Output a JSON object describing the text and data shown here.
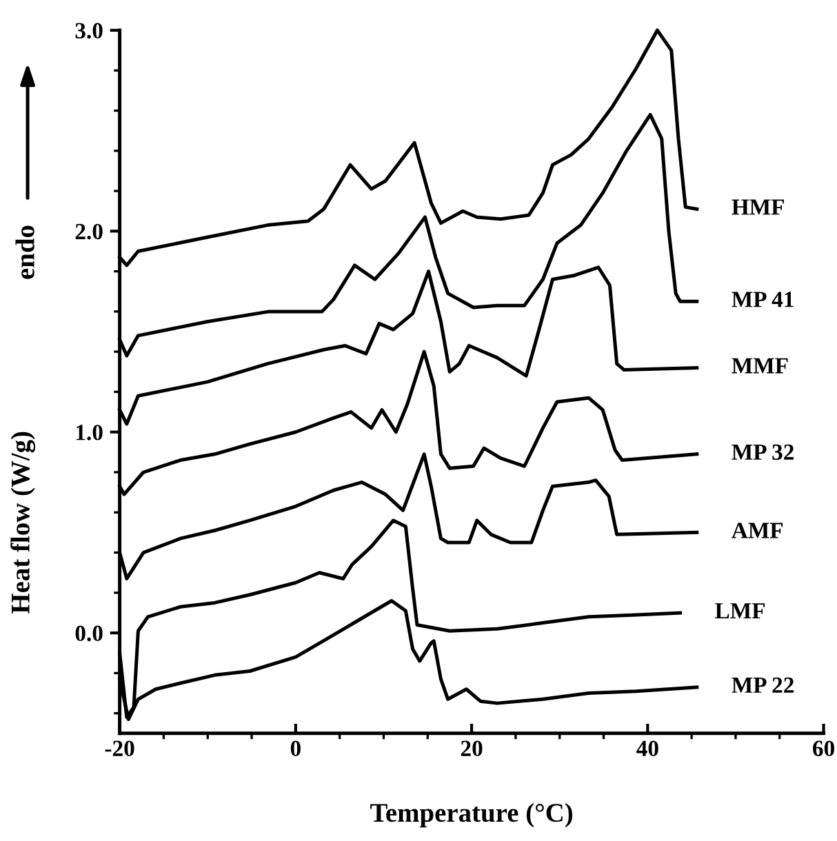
{
  "chart_data": {
    "type": "line",
    "xlabel": "Temperature (°C)",
    "ylabel": "Heat flow (W/g)",
    "annotations": [
      "endo"
    ],
    "xlim": [
      -20,
      60
    ],
    "xticks": [
      -20,
      0,
      20,
      40,
      60
    ],
    "ylim": [
      -0.5,
      3.0
    ],
    "yticks": [
      {
        "value": 0,
        "label": "0.0"
      },
      {
        "value": 1,
        "label": "1.0"
      },
      {
        "value": 2,
        "label": "2.0"
      },
      {
        "value": 3,
        "label": "3.0"
      }
    ],
    "grid": false,
    "legend": false,
    "series": [
      {
        "name": "HMF",
        "color": "#000000",
        "x": [
          -20,
          -19.2,
          -17.9,
          -10,
          -3.2,
          1.4,
          3.2,
          6.2,
          8.6,
          10.2,
          13.5,
          15.4,
          16.5,
          19.0,
          20.6,
          23.3,
          26.5,
          28.1,
          29.2,
          31.3,
          33.3,
          36.0,
          38.7,
          41.1,
          42.7,
          43.5,
          44.3,
          45.6
        ],
        "values": [
          1.87,
          1.83,
          1.9,
          1.97,
          2.03,
          2.05,
          2.11,
          2.33,
          2.21,
          2.25,
          2.44,
          2.14,
          2.04,
          2.1,
          2.07,
          2.06,
          2.08,
          2.19,
          2.33,
          2.38,
          2.46,
          2.62,
          2.81,
          3.0,
          2.9,
          2.46,
          2.12,
          2.11
        ]
      },
      {
        "name": "MP 41",
        "color": "#000000",
        "x": [
          -20,
          -19.2,
          -17.9,
          -10,
          -3.0,
          3.0,
          4.3,
          6.7,
          9.0,
          11.7,
          14.7,
          15.9,
          17.3,
          20.2,
          22.9,
          26.0,
          28.1,
          29.7,
          32.4,
          34.9,
          37.6,
          40.3,
          41.6,
          42.4,
          43.2,
          43.7,
          45.6
        ],
        "values": [
          1.46,
          1.38,
          1.48,
          1.55,
          1.6,
          1.6,
          1.66,
          1.83,
          1.76,
          1.89,
          2.07,
          1.87,
          1.69,
          1.62,
          1.63,
          1.63,
          1.76,
          1.94,
          2.03,
          2.19,
          2.4,
          2.58,
          2.46,
          2.0,
          1.69,
          1.65,
          1.65
        ]
      },
      {
        "name": "MMF",
        "color": "#000000",
        "x": [
          -20,
          -19.2,
          -17.9,
          -10,
          -3.2,
          3.2,
          5.6,
          8.0,
          9.5,
          11.1,
          13.3,
          15.1,
          16.5,
          17.5,
          18.6,
          19.7,
          22.9,
          26.2,
          27.6,
          29.2,
          31.7,
          34.4,
          35.7,
          36.5,
          37.3,
          45.6
        ],
        "values": [
          1.11,
          1.04,
          1.18,
          1.25,
          1.34,
          1.41,
          1.43,
          1.39,
          1.54,
          1.51,
          1.59,
          1.8,
          1.55,
          1.3,
          1.34,
          1.43,
          1.37,
          1.28,
          1.5,
          1.76,
          1.78,
          1.82,
          1.73,
          1.34,
          1.31,
          1.32
        ]
      },
      {
        "name": "MP 32",
        "color": "#000000",
        "x": [
          -20,
          -19.5,
          -17.3,
          -13.1,
          -9.2,
          -5.2,
          0,
          4.3,
          6.3,
          8.6,
          9.8,
          11.4,
          12.7,
          14.6,
          15.7,
          16.5,
          17.5,
          20.2,
          21.4,
          23.3,
          26.0,
          28.1,
          29.7,
          33.3,
          34.9,
          36.3,
          37.1,
          45.6
        ],
        "values": [
          0.73,
          0.69,
          0.8,
          0.86,
          0.89,
          0.94,
          1.0,
          1.07,
          1.1,
          1.02,
          1.11,
          1.0,
          1.14,
          1.4,
          1.23,
          0.89,
          0.82,
          0.83,
          0.92,
          0.87,
          0.83,
          1.02,
          1.15,
          1.17,
          1.11,
          0.91,
          0.86,
          0.89
        ]
      },
      {
        "name": "AMF",
        "color": "#000000",
        "x": [
          -20,
          -19.2,
          -17.3,
          -13.1,
          -9.2,
          -5.2,
          0,
          4.3,
          7.5,
          10.2,
          12.2,
          14.6,
          15.4,
          16.5,
          17.3,
          19.7,
          20.6,
          22.2,
          24.4,
          26.8,
          28.1,
          29.2,
          33.3,
          34.1,
          35.6,
          36.5,
          45.6
        ],
        "values": [
          0.4,
          0.27,
          0.4,
          0.47,
          0.51,
          0.56,
          0.63,
          0.71,
          0.75,
          0.69,
          0.61,
          0.89,
          0.73,
          0.47,
          0.45,
          0.45,
          0.56,
          0.49,
          0.45,
          0.45,
          0.61,
          0.73,
          0.75,
          0.76,
          0.68,
          0.49,
          0.5
        ]
      },
      {
        "name": "LMF",
        "color": "#000000",
        "x": [
          -20,
          -19.2,
          -18.4,
          -17.9,
          -16.8,
          -13.1,
          -9.2,
          -5.2,
          0,
          2.7,
          5.4,
          6.4,
          8.6,
          11.1,
          12.5,
          13.3,
          13.8,
          17.5,
          22.9,
          28.1,
          33.3,
          38.7,
          43.7
        ],
        "values": [
          -0.1,
          -0.42,
          -0.37,
          0.01,
          0.08,
          0.13,
          0.15,
          0.19,
          0.25,
          0.3,
          0.27,
          0.34,
          0.43,
          0.56,
          0.53,
          0.22,
          0.04,
          0.01,
          0.02,
          0.05,
          0.08,
          0.09,
          0.1
        ]
      },
      {
        "name": "MP 22",
        "color": "#000000",
        "x": [
          -20,
          -19.0,
          -17.9,
          -15.9,
          -13.1,
          -9.2,
          -5.2,
          0,
          4.3,
          10.9,
          12.5,
          13.3,
          14.1,
          15.4,
          15.7,
          16.5,
          17.3,
          19.4,
          21.0,
          22.9,
          28.1,
          33.3,
          38.7,
          45.6
        ],
        "values": [
          -0.23,
          -0.43,
          -0.33,
          -0.28,
          -0.25,
          -0.21,
          -0.19,
          -0.12,
          -0.01,
          0.16,
          0.11,
          -0.08,
          -0.14,
          -0.05,
          -0.04,
          -0.23,
          -0.33,
          -0.28,
          -0.34,
          -0.35,
          -0.33,
          -0.3,
          -0.29,
          -0.27
        ]
      }
    ]
  }
}
